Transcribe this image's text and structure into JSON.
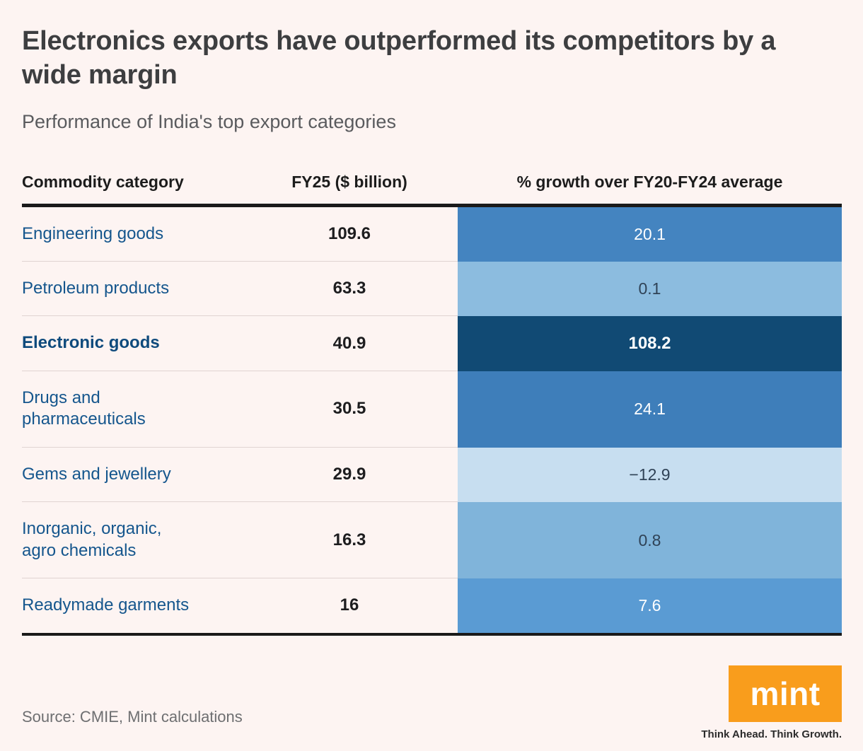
{
  "header": {
    "title": "Electronics exports have outperformed its competitors by a wide margin",
    "subtitle": "Performance of India's top export categories"
  },
  "chart_data": {
    "type": "table",
    "title": "Electronics exports have outperformed its competitors by a wide margin",
    "subtitle": "Performance of India's top export categories",
    "columns": [
      "Commodity category",
      "FY25 ($ billion)",
      "% growth over FY20-FY24 average"
    ],
    "rows": [
      {
        "category": "Engineering goods",
        "fy25": 109.6,
        "fy25_label": "109.6",
        "growth": 20.1,
        "growth_label": "20.1",
        "highlight": false,
        "growth_bg": "#4484c0",
        "growth_fg": "#ffffff"
      },
      {
        "category": "Petroleum products",
        "fy25": 63.3,
        "fy25_label": "63.3",
        "growth": 0.1,
        "growth_label": "0.1",
        "highlight": false,
        "growth_bg": "#8cbcdf",
        "growth_fg": "#2f4256"
      },
      {
        "category": "Electronic goods",
        "fy25": 40.9,
        "fy25_label": "40.9",
        "growth": 108.2,
        "growth_label": "108.2",
        "highlight": true,
        "growth_bg": "#114a74",
        "growth_fg": "#ffffff"
      },
      {
        "category": "Drugs and pharmaceuticals",
        "fy25": 30.5,
        "fy25_label": "30.5",
        "growth": 24.1,
        "growth_label": "24.1",
        "highlight": false,
        "growth_bg": "#3e7eba",
        "growth_fg": "#ffffff"
      },
      {
        "category": "Gems and jewellery",
        "fy25": 29.9,
        "fy25_label": "29.9",
        "growth": -12.9,
        "growth_label": "−12.9",
        "highlight": false,
        "growth_bg": "#c7def0",
        "growth_fg": "#2f4256"
      },
      {
        "category": "Inorganic, organic, agro chemicals",
        "fy25": 16.3,
        "fy25_label": "16.3",
        "growth": 0.8,
        "growth_label": "0.8",
        "highlight": false,
        "growth_bg": "#80b4da",
        "growth_fg": "#2f4256"
      },
      {
        "category": "Readymade garments",
        "fy25": 16,
        "fy25_label": "16",
        "growth": 7.6,
        "growth_label": "7.6",
        "highlight": false,
        "growth_bg": "#5a9bd3",
        "growth_fg": "#ffffff"
      }
    ],
    "legend_position": "none",
    "grid": false
  },
  "footer": {
    "source": "Source: CMIE, Mint calculations",
    "logo_text": "mint",
    "tagline": "Think Ahead. Think Growth."
  },
  "colors": {
    "background": "#fdf4f2",
    "title": "#3d3e40",
    "subtitle": "#5a5b5e",
    "category_link": "#15568d",
    "rule": "#1a1a1a",
    "brand_orange": "#f99d1c"
  }
}
